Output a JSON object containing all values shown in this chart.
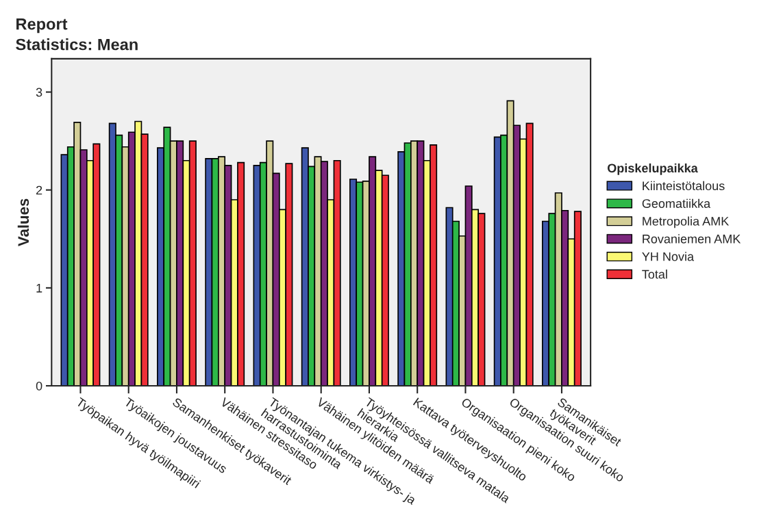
{
  "chart_data": {
    "type": "bar",
    "title": "Report",
    "subtitle": "Statistics: Mean",
    "ylabel": "Values",
    "legend_title": "Opiskelupaikka",
    "categories": [
      "Työpaikan hyvä työilmapiiri",
      "Työaikojen joustavuus",
      "Samanhenkiset työkaverit",
      "Vähäinen stressitaso",
      "Työnantajan tukema virkistys- ja\nharrastustoiminta",
      "Vähäinen ylitöiden määrä",
      "Työyhteisössä vallitseva matala\nhierarkia",
      "Kattava työterveyshuolto",
      "Organisaation pieni koko",
      "Organisaation suuri koko",
      "Samanikäiset\ntyökaverit"
    ],
    "series": [
      {
        "name": "Kiinteistötalous",
        "color": "#3e58ac",
        "values": [
          2.36,
          2.68,
          2.43,
          2.32,
          2.25,
          2.43,
          2.11,
          2.39,
          1.82,
          2.54,
          1.68
        ]
      },
      {
        "name": "Geomatiikka",
        "color": "#2eb848",
        "values": [
          2.44,
          2.56,
          2.64,
          2.32,
          2.28,
          2.24,
          2.08,
          2.48,
          1.68,
          2.56,
          1.76
        ]
      },
      {
        "name": "Metropolia AMK",
        "color": "#d3ce97",
        "values": [
          2.69,
          2.44,
          2.5,
          2.34,
          2.5,
          2.34,
          2.09,
          2.5,
          1.53,
          2.91,
          1.97
        ]
      },
      {
        "name": "Rovaniemen AMK",
        "color": "#7b277d",
        "values": [
          2.41,
          2.59,
          2.5,
          2.25,
          2.17,
          2.29,
          2.34,
          2.5,
          2.04,
          2.66,
          1.79
        ]
      },
      {
        "name": "YH Novia",
        "color": "#fbf873",
        "values": [
          2.3,
          2.7,
          2.3,
          1.9,
          1.8,
          1.9,
          2.2,
          2.3,
          1.8,
          2.52,
          1.5
        ]
      },
      {
        "name": "Total",
        "color": "#ef3038",
        "values": [
          2.47,
          2.57,
          2.5,
          2.28,
          2.27,
          2.3,
          2.15,
          2.46,
          1.76,
          2.68,
          1.78
        ]
      }
    ],
    "ylim": [
      0,
      3.34
    ],
    "yticks": [
      0,
      1,
      2,
      3
    ],
    "grid": false,
    "legend": "right"
  }
}
